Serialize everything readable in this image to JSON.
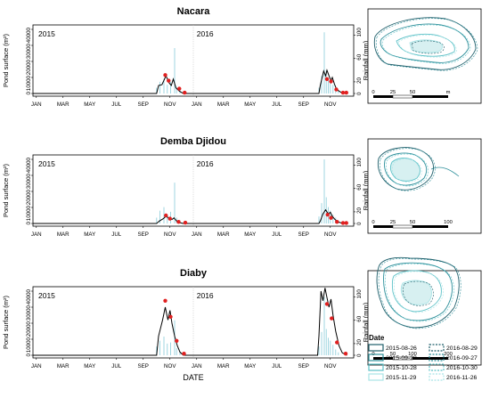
{
  "chart_data": {
    "type": "line",
    "xlabel": "DATE",
    "ylabel_left": "Pond surface (m²)",
    "ylabel_right": "Rainfall (mm)",
    "x_months": [
      "JAN",
      "MAR",
      "MAY",
      "JUL",
      "SEP",
      "NOV",
      "JAN",
      "MAR",
      "MAY",
      "JUL",
      "SEP",
      "NOV"
    ],
    "years": [
      "2015",
      "2016"
    ],
    "yticks_left": [
      "0",
      "10000",
      "20000",
      "30000",
      "40000"
    ],
    "yticks_right": [
      "0",
      "20",
      "60",
      "100"
    ],
    "ylim_left": [
      0,
      40000
    ],
    "ylim_right": [
      0,
      110
    ],
    "sites": [
      {
        "name": "Nacara",
        "pond_surface": [
          [
            0,
            0
          ],
          [
            18.5,
            0
          ],
          [
            18.8,
            5000
          ],
          [
            19.3,
            5500
          ],
          [
            19.9,
            11000
          ],
          [
            20.4,
            6500
          ],
          [
            20.7,
            5000
          ],
          [
            21.0,
            9000
          ],
          [
            21.4,
            3500
          ],
          [
            21.9,
            1500
          ],
          [
            22.5,
            0
          ],
          [
            42.8,
            0
          ],
          [
            43.0,
            5000
          ],
          [
            43.5,
            14000
          ],
          [
            43.8,
            11000
          ],
          [
            44.0,
            14500
          ],
          [
            44.3,
            11000
          ],
          [
            44.6,
            8000
          ],
          [
            44.8,
            10000
          ],
          [
            45.1,
            6000
          ],
          [
            45.4,
            3000
          ],
          [
            45.8,
            1500
          ],
          [
            46.2,
            500
          ],
          [
            47.0,
            0
          ]
        ],
        "observed": [
          [
            19.8,
            11500
          ],
          [
            20.3,
            8000
          ],
          [
            21.9,
            3000
          ],
          [
            22.7,
            500
          ],
          [
            44.0,
            9000
          ],
          [
            44.6,
            7500
          ],
          [
            45.4,
            2500
          ],
          [
            46.4,
            500
          ],
          [
            46.9,
            500
          ]
        ],
        "rainfall": [
          [
            18.5,
            10
          ],
          [
            19.0,
            20
          ],
          [
            19.6,
            25
          ],
          [
            20.1,
            15
          ],
          [
            20.6,
            20
          ],
          [
            21.2,
            78
          ],
          [
            21.5,
            10
          ],
          [
            22.0,
            5
          ],
          [
            42.8,
            10
          ],
          [
            43.2,
            30
          ],
          [
            43.6,
            105
          ],
          [
            43.9,
            40
          ],
          [
            44.2,
            25
          ],
          [
            44.5,
            20
          ],
          [
            44.9,
            15
          ],
          [
            45.3,
            10
          ],
          [
            45.7,
            5
          ]
        ],
        "scale_bar": [
          "0",
          "25",
          "50",
          "m"
        ]
      },
      {
        "name": "Demba Djidou",
        "pond_surface": [
          [
            0,
            0
          ],
          [
            18.5,
            0
          ],
          [
            18.9,
            1500
          ],
          [
            19.5,
            3000
          ],
          [
            19.9,
            4500
          ],
          [
            20.3,
            3500
          ],
          [
            20.8,
            2500
          ],
          [
            21.1,
            3500
          ],
          [
            21.5,
            1500
          ],
          [
            22.0,
            500
          ],
          [
            22.5,
            0
          ],
          [
            42.8,
            0
          ],
          [
            43.0,
            1500
          ],
          [
            43.4,
            6000
          ],
          [
            43.8,
            8500
          ],
          [
            44.2,
            6000
          ],
          [
            44.5,
            7000
          ],
          [
            44.8,
            4500
          ],
          [
            45.2,
            2500
          ],
          [
            45.7,
            1000
          ],
          [
            46.2,
            200
          ],
          [
            47.0,
            0
          ]
        ],
        "observed": [
          [
            19.9,
            5000
          ],
          [
            20.5,
            3000
          ],
          [
            21.8,
            1000
          ],
          [
            22.8,
            500
          ],
          [
            44.1,
            5500
          ],
          [
            44.6,
            3500
          ],
          [
            45.5,
            1000
          ],
          [
            46.4,
            300
          ],
          [
            46.9,
            300
          ]
        ],
        "rainfall": [
          [
            18.5,
            10
          ],
          [
            19.0,
            22
          ],
          [
            19.6,
            28
          ],
          [
            20.1,
            15
          ],
          [
            20.6,
            20
          ],
          [
            21.2,
            70
          ],
          [
            21.5,
            10
          ],
          [
            22.0,
            5
          ],
          [
            42.8,
            12
          ],
          [
            43.2,
            35
          ],
          [
            43.6,
            110
          ],
          [
            43.9,
            45
          ],
          [
            44.2,
            28
          ],
          [
            44.5,
            22
          ],
          [
            44.9,
            15
          ],
          [
            45.3,
            10
          ],
          [
            45.7,
            5
          ]
        ],
        "scale_bar": [
          "0",
          "25",
          "50",
          "100"
        ]
      },
      {
        "name": "Diaby",
        "pond_surface": [
          [
            0,
            0
          ],
          [
            18.5,
            0
          ],
          [
            18.8,
            12000
          ],
          [
            19.4,
            22000
          ],
          [
            19.8,
            30000
          ],
          [
            20.2,
            22000
          ],
          [
            20.5,
            28000
          ],
          [
            20.8,
            20000
          ],
          [
            21.2,
            12000
          ],
          [
            21.6,
            6000
          ],
          [
            22.0,
            2000
          ],
          [
            22.5,
            0
          ],
          [
            42.6,
            0
          ],
          [
            42.8,
            12000
          ],
          [
            43.1,
            40000
          ],
          [
            43.4,
            34000
          ],
          [
            43.7,
            42000
          ],
          [
            44.0,
            36000
          ],
          [
            44.3,
            30000
          ],
          [
            44.6,
            35000
          ],
          [
            44.9,
            25000
          ],
          [
            45.3,
            15000
          ],
          [
            45.8,
            6000
          ],
          [
            46.3,
            1500
          ],
          [
            47.0,
            0
          ]
        ],
        "observed": [
          [
            19.8,
            34000
          ],
          [
            20.6,
            24000
          ],
          [
            21.5,
            9000
          ],
          [
            22.6,
            1000
          ],
          [
            44.0,
            32000
          ],
          [
            44.7,
            23000
          ],
          [
            45.5,
            8000
          ],
          [
            46.8,
            1000
          ]
        ],
        "rainfall": [
          [
            18.5,
            15
          ],
          [
            19.0,
            25
          ],
          [
            19.6,
            32
          ],
          [
            20.1,
            20
          ],
          [
            20.6,
            22
          ],
          [
            21.2,
            60
          ],
          [
            21.5,
            12
          ],
          [
            22.0,
            5
          ],
          [
            42.8,
            15
          ],
          [
            43.2,
            40
          ],
          [
            43.6,
            100
          ],
          [
            43.9,
            45
          ],
          [
            44.2,
            30
          ],
          [
            44.5,
            25
          ],
          [
            44.9,
            18
          ],
          [
            45.3,
            10
          ],
          [
            45.7,
            5
          ]
        ],
        "scale_bar": [
          "0",
          "50",
          "100",
          "200"
        ]
      }
    ],
    "legend": {
      "title": "Date",
      "entries": [
        {
          "label": "2015-08-26",
          "style": "solid",
          "color": "#1f5f6b"
        },
        {
          "label": "2016-08-29",
          "style": "dashed",
          "color": "#1f5f6b"
        },
        {
          "label": "2015-09-20",
          "style": "solid",
          "color": "#2d8f9a"
        },
        {
          "label": "2016-09-27",
          "style": "dashed",
          "color": "#2d8f9a"
        },
        {
          "label": "2015-10-28",
          "style": "solid",
          "color": "#5ec2c8"
        },
        {
          "label": "2016-10-30",
          "style": "dashed",
          "color": "#5ec2c8"
        },
        {
          "label": "2015-11-29",
          "style": "solid",
          "color": "#a9e4e6"
        },
        {
          "label": "2016-11-26",
          "style": "dashed",
          "color": "#a9e4e6"
        }
      ]
    },
    "colors": {
      "line": "#000000",
      "observed": "#e02020",
      "rainfall": "#9fd6e0",
      "frame": "#000000"
    }
  }
}
